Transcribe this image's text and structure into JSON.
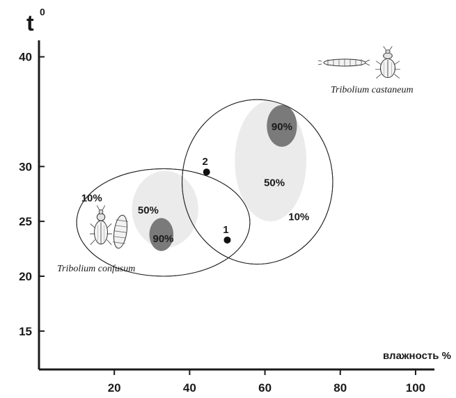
{
  "chart_data": {
    "type": "scatter",
    "ylabel": "t",
    "ylabel_sup": "0",
    "xlabel": "влажность %",
    "xlim": [
      0,
      105
    ],
    "ylim": [
      11.5,
      41.5
    ],
    "x_ticks": [
      20,
      40,
      60,
      80,
      100
    ],
    "y_ticks": [
      15,
      20,
      25,
      30,
      40
    ],
    "grid": false,
    "species": [
      {
        "name": "Tribolium confusum",
        "zones": [
          {
            "label": "10%",
            "cx": 33,
            "cy": 24.9,
            "rx": 23,
            "ry": 4.9,
            "fill": "none",
            "label_at": [
              14,
              27.2
            ]
          },
          {
            "label": "50%",
            "cx": 33.5,
            "cy": 26.1,
            "rx": 8.8,
            "ry": 3.5,
            "fill": "#ebebeb",
            "label_at": [
              29,
              26.1
            ]
          },
          {
            "label": "90%",
            "cx": 32.5,
            "cy": 23.8,
            "rx": 3.2,
            "ry": 1.5,
            "fill": "#7a7a7a",
            "label_at": [
              33,
              23.5
            ]
          }
        ]
      },
      {
        "name": "Tribolium castaneum",
        "zones": [
          {
            "label": "10%",
            "cx": 58,
            "cy": 28.6,
            "rx": 20,
            "ry": 7.5,
            "fill": "none",
            "label_at": [
              69,
              25.5
            ]
          },
          {
            "label": "50%",
            "cx": 61.5,
            "cy": 30.5,
            "rx": 9.5,
            "ry": 5.5,
            "fill": "#ebebeb",
            "label_at": [
              62.5,
              28.6
            ]
          },
          {
            "label": "90%",
            "cx": 64.5,
            "cy": 33.7,
            "rx": 4,
            "ry": 1.9,
            "fill": "#7a7a7a",
            "label_at": [
              64.5,
              33.7
            ]
          }
        ]
      }
    ],
    "points": [
      {
        "label": "1",
        "x": 50,
        "y": 23.3
      },
      {
        "label": "2",
        "x": 44.5,
        "y": 29.5
      }
    ],
    "colors": {
      "axis": "#1a1a1a",
      "light_fill": "#ebebeb",
      "dark_fill": "#7a7a7a"
    }
  }
}
